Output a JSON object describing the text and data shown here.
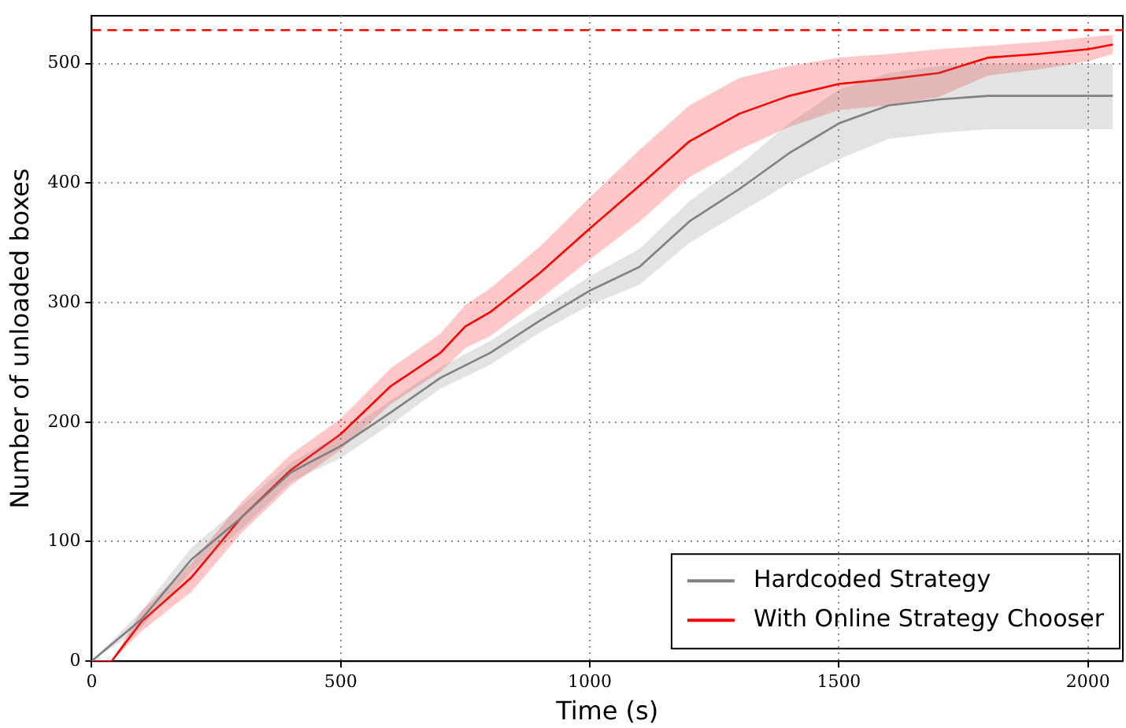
{
  "chart_data": {
    "type": "line",
    "xlabel": "Time (s)",
    "ylabel": "Number of unloaded boxes",
    "xlim": [
      0,
      2070
    ],
    "ylim": [
      0,
      540
    ],
    "xticks": [
      0,
      500,
      1000,
      1500,
      2000
    ],
    "yticks": [
      0,
      100,
      200,
      300,
      400,
      500
    ],
    "grid": true,
    "legend": "bottom right",
    "marker": "none",
    "line_style": "solid",
    "ref_lines": [
      {
        "axis": "y",
        "value": 528,
        "color": "#ff0000",
        "line_style": "dashed"
      }
    ],
    "series": [
      {
        "name": "Hardcoded Strategy",
        "color": "#808080",
        "x": [
          0,
          100,
          200,
          300,
          400,
          500,
          600,
          700,
          800,
          900,
          1000,
          1100,
          1200,
          1300,
          1400,
          1500,
          1600,
          1700,
          1800,
          1900,
          2000,
          2050
        ],
        "values": [
          0,
          35,
          85,
          120,
          158,
          180,
          208,
          237,
          258,
          285,
          310,
          330,
          368,
          395,
          425,
          450,
          465,
          470,
          473,
          473,
          473,
          473
        ],
        "lower": [
          0,
          28,
          75,
          110,
          150,
          170,
          198,
          228,
          248,
          275,
          298,
          315,
          350,
          375,
          400,
          420,
          437,
          442,
          445,
          445,
          445,
          445
        ],
        "upper": [
          0,
          42,
          95,
          130,
          166,
          190,
          218,
          246,
          268,
          295,
          322,
          345,
          385,
          415,
          450,
          478,
          492,
          498,
          500,
          500,
          500,
          500
        ]
      },
      {
        "name": "With Online Strategy Chooser",
        "color": "#ff0000",
        "x": [
          0,
          40,
          100,
          200,
          300,
          400,
          500,
          600,
          700,
          750,
          800,
          900,
          1000,
          1100,
          1200,
          1300,
          1400,
          1500,
          1600,
          1700,
          1800,
          1900,
          2000,
          2050
        ],
        "values": [
          0,
          0,
          33,
          70,
          120,
          160,
          190,
          230,
          258,
          280,
          292,
          325,
          362,
          398,
          435,
          458,
          473,
          483,
          487,
          492,
          505,
          508,
          512,
          516
        ],
        "lower": [
          0,
          0,
          25,
          58,
          107,
          147,
          177,
          215,
          242,
          262,
          272,
          303,
          336,
          368,
          405,
          428,
          447,
          461,
          465,
          472,
          490,
          495,
          502,
          508
        ],
        "upper": [
          0,
          0,
          42,
          82,
          133,
          173,
          203,
          245,
          274,
          298,
          312,
          347,
          388,
          428,
          465,
          488,
          498,
          505,
          508,
          512,
          515,
          518,
          522,
          524
        ]
      }
    ]
  }
}
